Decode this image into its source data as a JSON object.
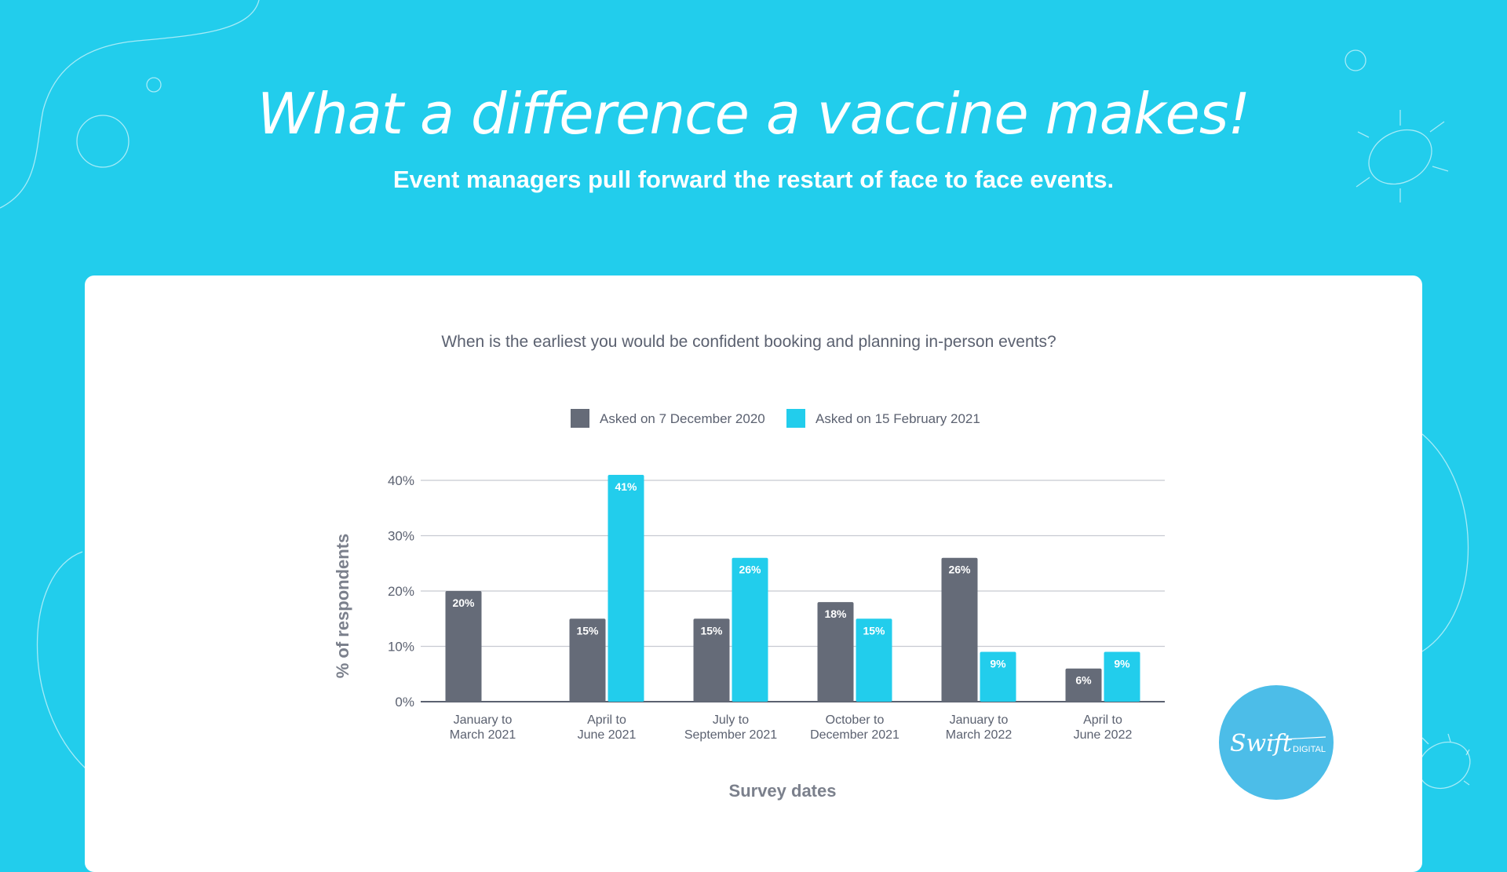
{
  "header": {
    "title": "What a difference a vaccine makes!",
    "subtitle": "Event managers pull forward the restart of face to face events."
  },
  "logo": {
    "script_text": "Swift",
    "word": "DIGITAL"
  },
  "colors": {
    "background": "#22cdec",
    "series_dark": "#656b78",
    "series_light": "#22cdec",
    "text": "#5b6170",
    "grid": "#c7cad1"
  },
  "chart_data": {
    "type": "bar",
    "title": "When is the earliest you would be confident booking and planning in-person events?",
    "xlabel": "Survey dates",
    "ylabel": "% of respondents",
    "categories": [
      [
        "January to",
        "March 2021"
      ],
      [
        "April to",
        "June 2021"
      ],
      [
        "July to",
        "September 2021"
      ],
      [
        "October to",
        "December 2021"
      ],
      [
        "January to",
        "March 2022"
      ],
      [
        "April to",
        "June 2022"
      ]
    ],
    "series": [
      {
        "name": "Asked on 7 December 2020",
        "color": "#656b78",
        "values": [
          20,
          15,
          15,
          18,
          26,
          6
        ]
      },
      {
        "name": "Asked on 15 February 2021",
        "color": "#22cdec",
        "values": [
          null,
          41,
          26,
          15,
          9,
          9
        ]
      }
    ],
    "ylim": [
      0,
      40
    ],
    "yticks": [
      "0%",
      "10%",
      "20%",
      "30%",
      "40%"
    ],
    "grid": true,
    "legend": "top-center"
  }
}
